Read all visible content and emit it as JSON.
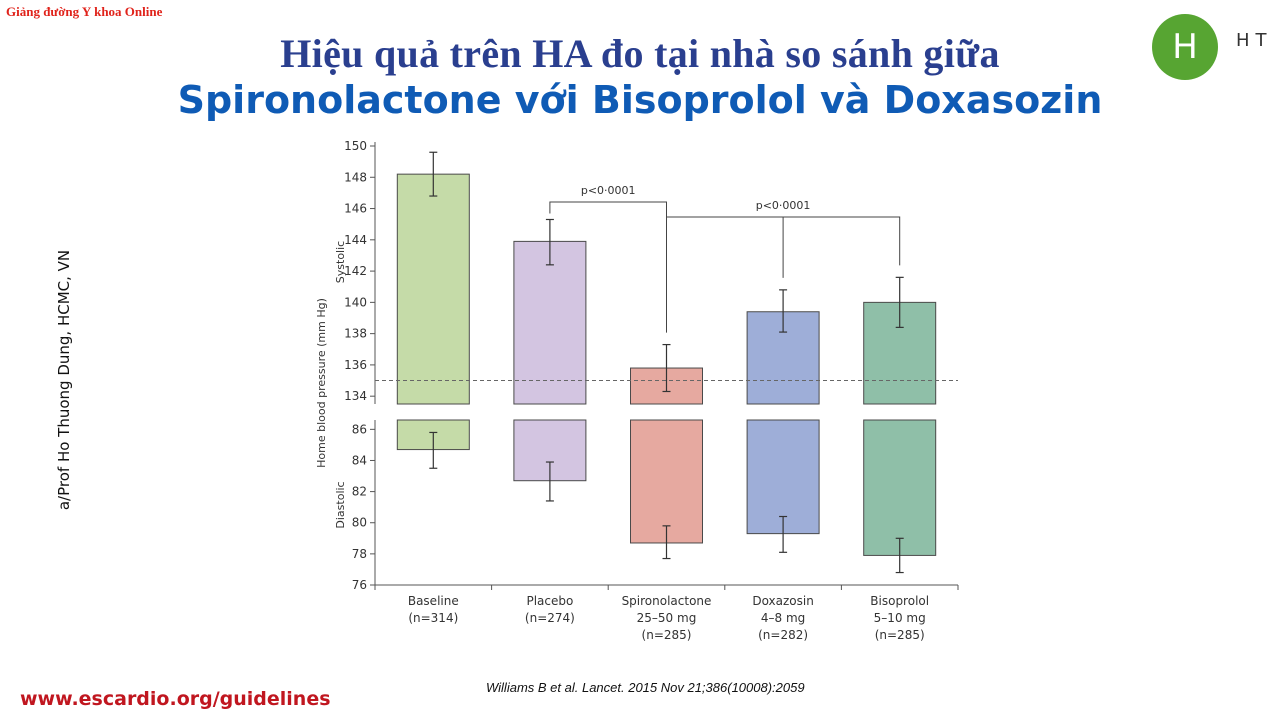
{
  "header": {
    "brand": "Giảng đường Y khoa Online",
    "title_line1": "Hiệu quả trên HA đo tại nhà so sánh giữa",
    "title_line2": "Spironolactone với Bisoprolol và Doxasozin",
    "logo_letter": "H",
    "logo_text": "HT"
  },
  "side_author": "a/Prof Ho Thuong Dung, HCMC, VN",
  "footer": {
    "website": "www.escardio.org/guidelines",
    "citation": "Williams B et al. Lancet. 2015 Nov 21;386(10008):2059"
  },
  "chart_data": {
    "type": "bar",
    "ylabel": "Home blood pressure (mm Hg)",
    "panel_labels": {
      "systolic": "Systolic",
      "diastolic": "Diastolic"
    },
    "categories": [
      {
        "lines": [
          "Baseline",
          "(n=314)"
        ]
      },
      {
        "lines": [
          "Placebo",
          "(n=274)"
        ]
      },
      {
        "lines": [
          "Spironolactone",
          "25–50 mg",
          "(n=285)"
        ]
      },
      {
        "lines": [
          "Doxazosin",
          "4–8 mg",
          "(n=282)"
        ]
      },
      {
        "lines": [
          "Bisoprolol",
          "5–10 mg",
          "(n=285)"
        ]
      }
    ],
    "systolic": {
      "ylim": [
        133.5,
        150
      ],
      "ticks": [
        134,
        136,
        138,
        140,
        142,
        144,
        146,
        148,
        150
      ],
      "values": [
        148.2,
        143.9,
        135.8,
        139.4,
        140.0
      ],
      "err_low": [
        146.8,
        142.4,
        134.3,
        138.1,
        138.4
      ],
      "err_high": [
        149.6,
        145.3,
        137.3,
        140.8,
        141.6
      ],
      "reference_line": 135
    },
    "diastolic": {
      "ylim": [
        76,
        86.6
      ],
      "ticks": [
        76,
        78,
        80,
        82,
        84,
        86
      ],
      "values": [
        84.7,
        82.7,
        78.7,
        79.3,
        77.9
      ],
      "err_low": [
        83.5,
        81.4,
        77.7,
        78.1,
        76.8
      ],
      "err_high": [
        85.8,
        83.9,
        79.8,
        80.4,
        79.0
      ]
    },
    "colors": [
      "#c5dba8",
      "#d3c5e1",
      "#e6a9a0",
      "#9eaed8",
      "#8fbfa8"
    ],
    "edge_color": "#4a4a4a",
    "annotations": [
      {
        "text": "p<0·0001",
        "from": 1,
        "to": 2
      },
      {
        "text": "p<0·0001",
        "from": 2,
        "to": [
          3,
          4
        ]
      }
    ]
  }
}
